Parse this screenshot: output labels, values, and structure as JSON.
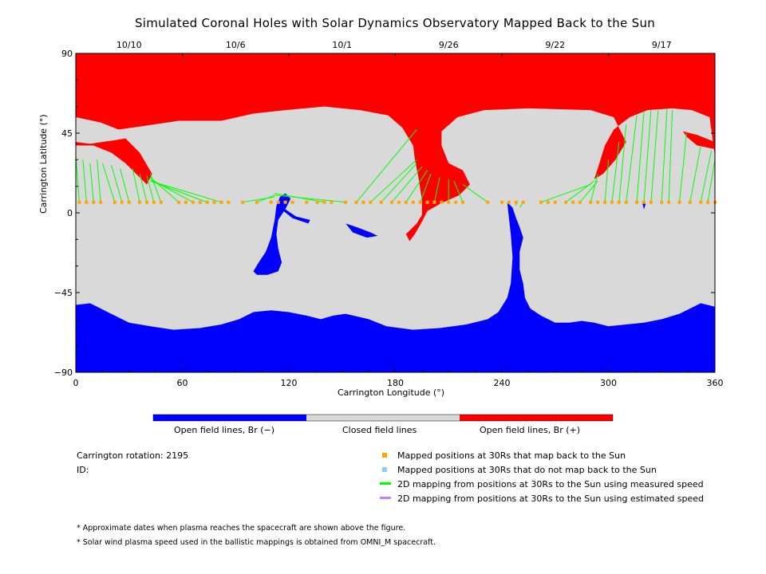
{
  "title": "Simulated Coronal Holes with Solar Dynamics Observatory Mapped Back to the Sun",
  "chart_data": {
    "type": "heatmap",
    "title": "Simulated Coronal Holes with Solar Dynamics Observatory Mapped Back to the Sun",
    "xlabel": "Carrington Longitude (°)",
    "ylabel": "Carrington Latitude (°)",
    "xlim": [
      0,
      360
    ],
    "ylim": [
      -90,
      90
    ],
    "x_ticks": [
      0,
      60,
      120,
      180,
      240,
      300,
      360
    ],
    "y_ticks": [
      -90,
      -45,
      0,
      45,
      90
    ],
    "x_tick_labels": [
      "0",
      "60",
      "120",
      "180",
      "240",
      "300",
      "360"
    ],
    "y_tick_labels": [
      "−90",
      "−45",
      "0",
      "45",
      "90"
    ],
    "top_dates": [
      {
        "label": "10/10",
        "lon": 30
      },
      {
        "label": "10/6",
        "lon": 90
      },
      {
        "label": "10/1",
        "lon": 150
      },
      {
        "label": "9/26",
        "lon": 210
      },
      {
        "label": "9/22",
        "lon": 270
      },
      {
        "label": "9/17",
        "lon": 330
      }
    ],
    "colorbar": [
      {
        "label": "Open field lines, Br (−)",
        "color": "#0000ff"
      },
      {
        "label": "Closed field lines",
        "color": "#d9d9d9"
      },
      {
        "label": "Open field lines, Br (+)",
        "color": "#ff0000"
      }
    ],
    "mapped_latitude": 6,
    "mapped_longitudes": [
      2,
      6,
      10,
      14,
      22,
      26,
      30,
      36,
      40,
      44,
      48,
      58,
      62,
      66,
      70,
      74,
      78,
      82,
      86,
      94,
      102,
      110,
      114,
      118,
      122,
      130,
      136,
      140,
      144,
      152,
      158,
      162,
      166,
      172,
      178,
      182,
      186,
      190,
      194,
      198,
      202,
      206,
      210,
      214,
      218,
      232,
      240,
      244,
      248,
      252,
      262,
      266,
      270,
      276,
      280,
      284,
      290,
      294,
      298,
      302,
      306,
      310,
      316,
      320,
      324,
      330,
      334,
      340,
      346,
      352,
      356,
      360
    ],
    "mapping_lines": [
      {
        "from": [
          2,
          6
        ],
        "to": [
          0,
          32
        ]
      },
      {
        "from": [
          6,
          6
        ],
        "to": [
          4,
          30
        ]
      },
      {
        "from": [
          10,
          6
        ],
        "to": [
          8,
          28
        ]
      },
      {
        "from": [
          14,
          6
        ],
        "to": [
          12,
          30
        ]
      },
      {
        "from": [
          22,
          6
        ],
        "to": [
          15,
          28
        ]
      },
      {
        "from": [
          26,
          6
        ],
        "to": [
          20,
          27
        ]
      },
      {
        "from": [
          30,
          6
        ],
        "to": [
          25,
          25
        ]
      },
      {
        "from": [
          36,
          6
        ],
        "to": [
          32,
          25
        ]
      },
      {
        "from": [
          40,
          6
        ],
        "to": [
          36,
          22
        ]
      },
      {
        "from": [
          44,
          6
        ],
        "to": [
          40,
          21
        ]
      },
      {
        "from": [
          48,
          6
        ],
        "to": [
          42,
          22
        ]
      },
      {
        "from": [
          58,
          6
        ],
        "to": [
          42,
          20
        ]
      },
      {
        "from": [
          66,
          6
        ],
        "to": [
          42,
          19
        ]
      },
      {
        "from": [
          74,
          6
        ],
        "to": [
          42,
          18
        ]
      },
      {
        "from": [
          82,
          6
        ],
        "to": [
          42,
          18
        ]
      },
      {
        "from": [
          94,
          6
        ],
        "to": [
          112,
          9
        ]
      },
      {
        "from": [
          102,
          6
        ],
        "to": [
          112,
          10
        ]
      },
      {
        "from": [
          140,
          6
        ],
        "to": [
          112,
          11
        ]
      },
      {
        "from": [
          152,
          6
        ],
        "to": [
          112,
          10
        ]
      },
      {
        "from": [
          158,
          6
        ],
        "to": [
          192,
          47
        ]
      },
      {
        "from": [
          166,
          6
        ],
        "to": [
          192,
          30
        ]
      },
      {
        "from": [
          172,
          6
        ],
        "to": [
          192,
          28
        ]
      },
      {
        "from": [
          178,
          6
        ],
        "to": [
          195,
          26
        ]
      },
      {
        "from": [
          186,
          6
        ],
        "to": [
          198,
          24
        ]
      },
      {
        "from": [
          194,
          6
        ],
        "to": [
          200,
          22
        ]
      },
      {
        "from": [
          202,
          6
        ],
        "to": [
          205,
          20
        ]
      },
      {
        "from": [
          210,
          6
        ],
        "to": [
          210,
          19
        ]
      },
      {
        "from": [
          218,
          6
        ],
        "to": [
          213,
          18
        ]
      },
      {
        "from": [
          232,
          6
        ],
        "to": [
          218,
          16
        ]
      },
      {
        "from": [
          248,
          6
        ],
        "to": [
          248,
          4
        ]
      },
      {
        "from": [
          252,
          6
        ],
        "to": [
          250,
          3
        ]
      },
      {
        "from": [
          262,
          6
        ],
        "to": [
          290,
          16
        ]
      },
      {
        "from": [
          276,
          6
        ],
        "to": [
          292,
          18
        ]
      },
      {
        "from": [
          284,
          6
        ],
        "to": [
          294,
          18
        ]
      },
      {
        "from": [
          290,
          6
        ],
        "to": [
          294,
          22
        ]
      },
      {
        "from": [
          298,
          6
        ],
        "to": [
          300,
          30
        ]
      },
      {
        "from": [
          302,
          6
        ],
        "to": [
          306,
          40
        ]
      },
      {
        "from": [
          306,
          6
        ],
        "to": [
          310,
          50
        ]
      },
      {
        "from": [
          310,
          6
        ],
        "to": [
          316,
          55
        ]
      },
      {
        "from": [
          316,
          6
        ],
        "to": [
          320,
          57
        ]
      },
      {
        "from": [
          320,
          6
        ],
        "to": [
          324,
          58
        ]
      },
      {
        "from": [
          324,
          6
        ],
        "to": [
          328,
          58
        ]
      },
      {
        "from": [
          330,
          6
        ],
        "to": [
          333,
          59
        ]
      },
      {
        "from": [
          334,
          6
        ],
        "to": [
          336,
          58
        ]
      },
      {
        "from": [
          340,
          6
        ],
        "to": [
          344,
          45
        ]
      },
      {
        "from": [
          346,
          6
        ],
        "to": [
          352,
          38
        ]
      },
      {
        "from": [
          352,
          6
        ],
        "to": [
          358,
          35
        ]
      },
      {
        "from": [
          356,
          6
        ],
        "to": [
          360,
          30
        ]
      }
    ]
  },
  "legend": {
    "colorbar_labels": [
      "Open field lines, Br (−)",
      "Closed field lines",
      "Open field lines, Br (+)"
    ],
    "rotation": "Carrington rotation: 2195",
    "id": "ID:",
    "items": [
      {
        "label": "Mapped positions at 30Rs that map back to the Sun",
        "color": "#ffa500",
        "icon": "square-marker"
      },
      {
        "label": "Mapped positions at 30Rs that do not map back to the Sun",
        "color": "#87cefa",
        "icon": "square-marker"
      },
      {
        "label": "2D mapping from positions at 30Rs to the Sun using measured speed",
        "color": "#00ff00",
        "icon": "line-marker"
      },
      {
        "label": "2D mapping from positions at 30Rs to the Sun using estimated speed",
        "color": "#c080ff",
        "icon": "line-marker"
      }
    ]
  },
  "notes": [
    "* Approximate dates when plasma reaches the spacecraft are shown above the figure.",
    "* Solar wind plasma speed used in the ballistic mappings is obtained from OMNI_M spacecraft."
  ],
  "colors": {
    "positive": "#ff0000",
    "negative": "#0000ff",
    "closed": "#d9d9d9",
    "mapped": "#ffa500",
    "unmapped": "#87cefa",
    "measured": "#00ff00",
    "estimated": "#c080ff"
  }
}
